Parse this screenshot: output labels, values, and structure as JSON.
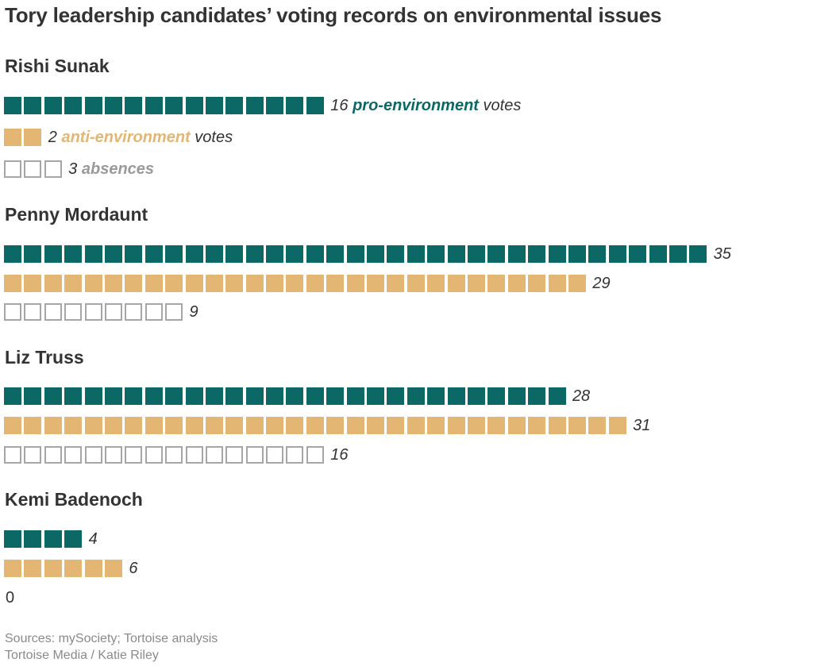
{
  "title": "Tory leadership candidates’ voting records on environmental issues",
  "colors": {
    "pro": "#0b6864",
    "anti": "#e3b773",
    "absence": "#a6a6a6"
  },
  "legend": {
    "pro_key": "pro-environment",
    "anti_key": "anti-environment",
    "abs_key": "absences",
    "votes_word": "votes"
  },
  "chart_data": {
    "type": "waffle-bar",
    "title": "Tory leadership candidates’ voting records on environmental issues",
    "categories": [
      "Rishi Sunak",
      "Penny Mordaunt",
      "Liz Truss",
      "Kemi Badenoch"
    ],
    "series": [
      {
        "name": "pro-environment votes",
        "values": [
          16,
          35,
          28,
          4
        ]
      },
      {
        "name": "anti-environment votes",
        "values": [
          2,
          29,
          31,
          6
        ]
      },
      {
        "name": "absences",
        "values": [
          3,
          9,
          16,
          0
        ]
      }
    ],
    "unit": "one square per vote"
  },
  "footer": {
    "sources": "Sources: mySociety; Tortoise analysis",
    "credit": "Tortoise Media / Katie Riley"
  }
}
